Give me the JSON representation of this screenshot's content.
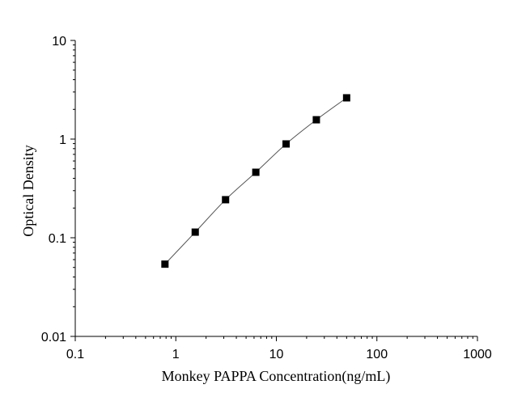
{
  "chart_data": {
    "type": "scatter",
    "title": "",
    "xlabel": "Monkey PAPPA Concentration(ng/mL)",
    "ylabel": "Optical Density",
    "x_scale": "log",
    "y_scale": "log",
    "xlim": [
      0.1,
      1000
    ],
    "ylim": [
      0.01,
      10
    ],
    "x_ticks": [
      "0.1",
      "1",
      "10",
      "100",
      "1000"
    ],
    "y_ticks": [
      "0.01",
      "0.1",
      "1",
      "10"
    ],
    "grid": false,
    "marker": "square",
    "fit_line": true,
    "color": "#000000",
    "x": [
      0.78,
      1.56,
      3.125,
      6.25,
      12.5,
      25,
      50
    ],
    "y": [
      0.054,
      0.114,
      0.243,
      0.461,
      0.893,
      1.57,
      2.62
    ]
  }
}
